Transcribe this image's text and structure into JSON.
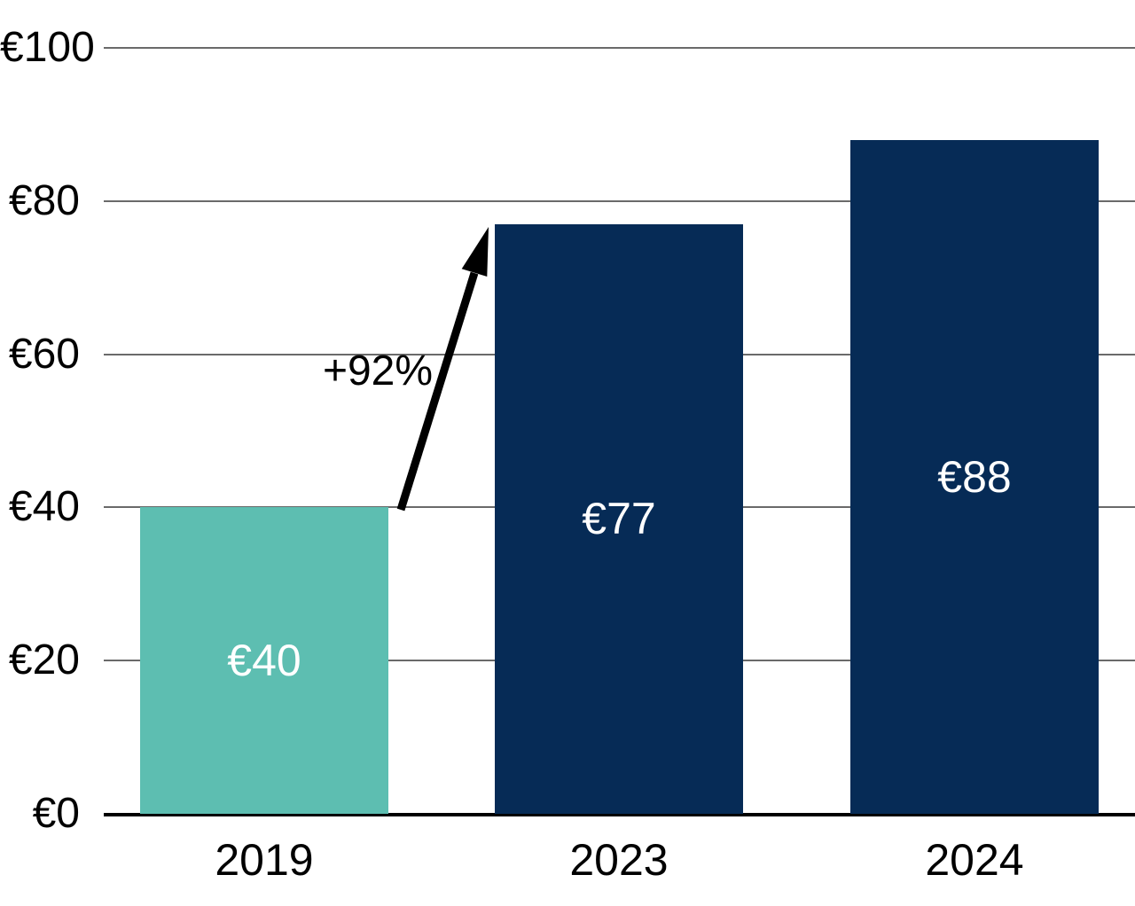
{
  "chart_data": {
    "type": "bar",
    "title": "",
    "xlabel": "",
    "ylabel": "",
    "categories": [
      "2019",
      "2023",
      "2024"
    ],
    "values": [
      40,
      77,
      88
    ],
    "value_labels": [
      "€40",
      "€77",
      "€88"
    ],
    "yticks": [
      {
        "label": "€0",
        "value": 0
      },
      {
        "label": "€20",
        "value": 20
      },
      {
        "label": "€40",
        "value": 40
      },
      {
        "label": "€60",
        "value": 60
      },
      {
        "label": "€80",
        "value": 80
      },
      {
        "label": "€100",
        "value": 100
      }
    ],
    "ylim": [
      0,
      100
    ],
    "grid": true,
    "legend": false,
    "annotation": {
      "text": "+92%",
      "from_category": "2019",
      "from_value": 40,
      "to_category": "2023",
      "to_value": 77
    },
    "colors": {
      "bar_colors": [
        "#5DBEB1",
        "#062B56",
        "#062B56"
      ],
      "gridline": "#6a6a6a",
      "axis_line": "#000000",
      "tick_text": "#000000",
      "bar_label_text": "#ffffff",
      "annotation_text": "#000000",
      "arrow": "#000000"
    }
  }
}
